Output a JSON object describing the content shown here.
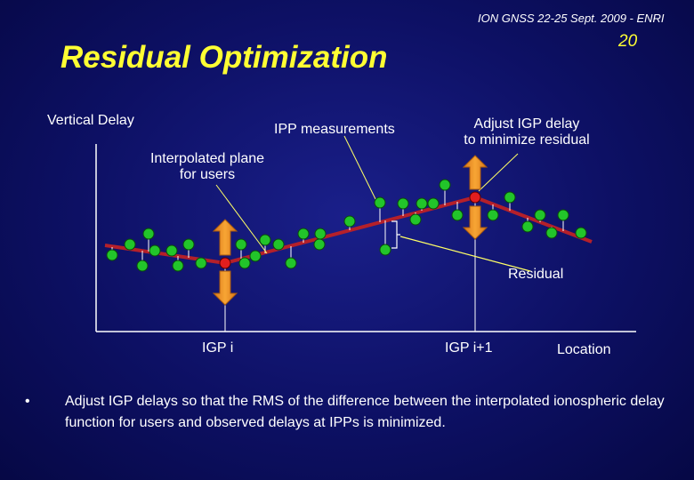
{
  "header": {
    "conference": "ION GNSS 22-25 Sept. 2009 - ENRI",
    "page_number": "20",
    "title": "Residual Optimization"
  },
  "diagram": {
    "labels": {
      "y_axis": "Vertical Delay",
      "ipp_measurements": "IPP measurements",
      "interpolated_plane_1": "Interpolated plane",
      "interpolated_plane_2": "for users",
      "adjust_igp_1": "Adjust IGP delay",
      "adjust_igp_2": "to minimize residual",
      "residual": "Residual",
      "igp_i": "IGP i",
      "igp_i1": "IGP i+1",
      "x_axis": "Location"
    },
    "colors": {
      "plane_line": "#b5202a",
      "ipp_point": "#22c52a",
      "igp_point": "#e21e1e",
      "arrow": "#f2961e",
      "leader_line": "#ffff66"
    },
    "icons": [
      "up-arrow-icon",
      "down-arrow-icon"
    ]
  },
  "bullets": [
    "Adjust IGP delays so that the RMS of the difference between the interpolated ionospheric delay function for users and observed delays at IPPs is minimized."
  ]
}
